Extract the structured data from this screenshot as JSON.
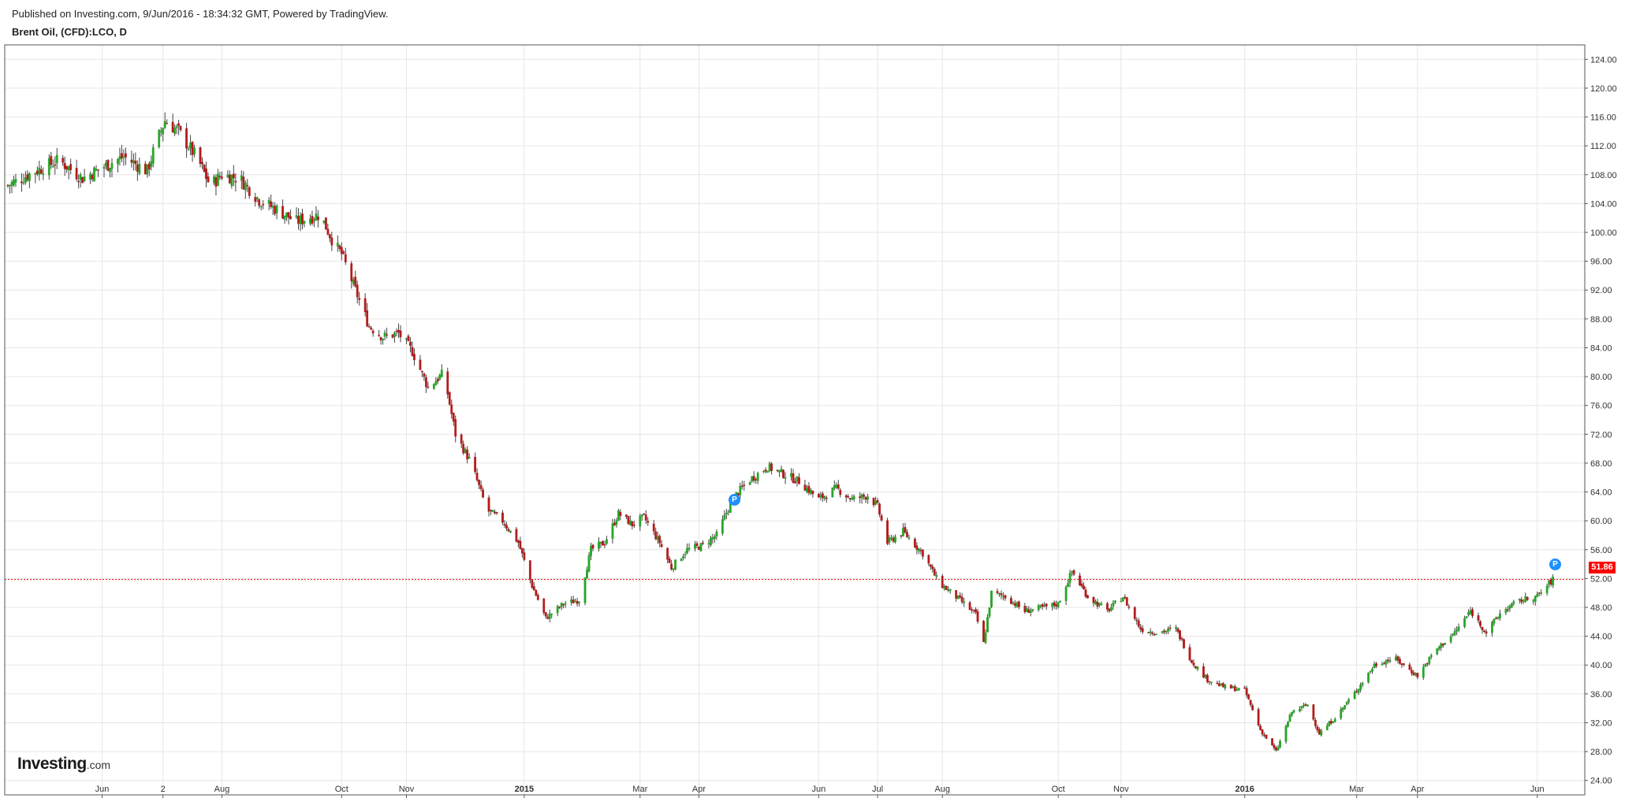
{
  "header": {
    "published": "Published on Investing.com, 9/Jun/2016 - 18:34:32 GMT, Powered by TradingView.",
    "symbol": "Brent Oil, (CFD):LCO, D"
  },
  "logo": {
    "brand": "Investing",
    "suffix": ".com"
  },
  "markers": [
    "P",
    "P"
  ],
  "last_price_label": "51.86",
  "colors": {
    "up": "#26a626",
    "down": "#b31b1b",
    "last_price_line": "#ff0000",
    "marker": "#1e90ff"
  },
  "chart_data": {
    "type": "candlestick",
    "title": "Brent Oil, (CFD):LCO, D",
    "xlabel": "",
    "ylabel": "",
    "ylim": [
      22,
      126
    ],
    "y_ticks": [
      "24.00",
      "28.00",
      "32.00",
      "36.00",
      "40.00",
      "44.00",
      "48.00",
      "52.00",
      "56.00",
      "60.00",
      "64.00",
      "68.00",
      "72.00",
      "76.00",
      "80.00",
      "84.00",
      "88.00",
      "92.00",
      "96.00",
      "100.00",
      "104.00",
      "108.00",
      "112.00",
      "116.00",
      "120.00",
      "124.00"
    ],
    "x_ticks": [
      {
        "label": "Jun",
        "date": "2014-06-01",
        "bold": false
      },
      {
        "label": "2",
        "date": "2014-07-02",
        "bold": false
      },
      {
        "label": "Aug",
        "date": "2014-08-01",
        "bold": false
      },
      {
        "label": "Oct",
        "date": "2014-10-01",
        "bold": false
      },
      {
        "label": "Nov",
        "date": "2014-11-03",
        "bold": false
      },
      {
        "label": "2015",
        "date": "2015-01-02",
        "bold": true
      },
      {
        "label": "Mar",
        "date": "2015-03-02",
        "bold": false
      },
      {
        "label": "Apr",
        "date": "2015-04-01",
        "bold": false
      },
      {
        "label": "Jun",
        "date": "2015-06-01",
        "bold": false
      },
      {
        "label": "Jul",
        "date": "2015-07-01",
        "bold": false
      },
      {
        "label": "Aug",
        "date": "2015-08-03",
        "bold": false
      },
      {
        "label": "Oct",
        "date": "2015-10-01",
        "bold": false
      },
      {
        "label": "Nov",
        "date": "2015-11-02",
        "bold": false
      },
      {
        "label": "2016",
        "date": "2016-01-04",
        "bold": true
      },
      {
        "label": "Mar",
        "date": "2016-03-01",
        "bold": false
      },
      {
        "label": "Apr",
        "date": "2016-04-01",
        "bold": false
      },
      {
        "label": "Jun",
        "date": "2016-06-01",
        "bold": false
      }
    ],
    "x_range": [
      "2014-04-14",
      "2016-06-22"
    ],
    "last_price": 51.86,
    "series": [
      {
        "name": "",
        "points": [
          {
            "date": "2014-04-14",
            "close": 106.5
          },
          {
            "date": "2014-04-28",
            "close": 108.5
          },
          {
            "date": "2014-05-10",
            "close": 110.0
          },
          {
            "date": "2014-05-22",
            "close": 107.5
          },
          {
            "date": "2014-06-01",
            "close": 109.0
          },
          {
            "date": "2014-06-12",
            "close": 110.5
          },
          {
            "date": "2014-06-24",
            "close": 108.5
          },
          {
            "date": "2014-06-28",
            "close": 112.0
          },
          {
            "date": "2014-07-03",
            "close": 115.5
          },
          {
            "date": "2014-07-10",
            "close": 114.0
          },
          {
            "date": "2014-07-20",
            "close": 110.0
          },
          {
            "date": "2014-07-26",
            "close": 106.5
          },
          {
            "date": "2014-08-01",
            "close": 108.0
          },
          {
            "date": "2014-08-10",
            "close": 107.5
          },
          {
            "date": "2014-08-20",
            "close": 104.5
          },
          {
            "date": "2014-08-30",
            "close": 103.0
          },
          {
            "date": "2014-09-08",
            "close": 101.5
          },
          {
            "date": "2014-09-20",
            "close": 102.5
          },
          {
            "date": "2014-09-27",
            "close": 98.5
          },
          {
            "date": "2014-10-01",
            "close": 97.0
          },
          {
            "date": "2014-10-08",
            "close": 92.0
          },
          {
            "date": "2014-10-15",
            "close": 87.0
          },
          {
            "date": "2014-10-22",
            "close": 85.5
          },
          {
            "date": "2014-10-30",
            "close": 86.0
          },
          {
            "date": "2014-11-06",
            "close": 83.5
          },
          {
            "date": "2014-11-14",
            "close": 78.5
          },
          {
            "date": "2014-11-22",
            "close": 80.5
          },
          {
            "date": "2014-11-28",
            "close": 72.0
          },
          {
            "date": "2014-12-06",
            "close": 68.0
          },
          {
            "date": "2014-12-14",
            "close": 61.5
          },
          {
            "date": "2014-12-22",
            "close": 60.0
          },
          {
            "date": "2014-12-30",
            "close": 57.0
          },
          {
            "date": "2015-01-06",
            "close": 51.0
          },
          {
            "date": "2015-01-13",
            "close": 46.5
          },
          {
            "date": "2015-01-22",
            "close": 48.5
          },
          {
            "date": "2015-01-30",
            "close": 49.0
          },
          {
            "date": "2015-02-05",
            "close": 56.0
          },
          {
            "date": "2015-02-12",
            "close": 57.0
          },
          {
            "date": "2015-02-19",
            "close": 61.0
          },
          {
            "date": "2015-02-26",
            "close": 59.5
          },
          {
            "date": "2015-03-04",
            "close": 60.5
          },
          {
            "date": "2015-03-12",
            "close": 57.0
          },
          {
            "date": "2015-03-18",
            "close": 53.5
          },
          {
            "date": "2015-03-26",
            "close": 56.0
          },
          {
            "date": "2015-04-02",
            "close": 56.5
          },
          {
            "date": "2015-04-10",
            "close": 58.0
          },
          {
            "date": "2015-04-18",
            "close": 63.0
          },
          {
            "date": "2015-04-26",
            "close": 65.5
          },
          {
            "date": "2015-05-06",
            "close": 67.5
          },
          {
            "date": "2015-05-14",
            "close": 66.5
          },
          {
            "date": "2015-05-22",
            "close": 65.5
          },
          {
            "date": "2015-06-01",
            "close": 63.0
          },
          {
            "date": "2015-06-10",
            "close": 64.5
          },
          {
            "date": "2015-06-18",
            "close": 63.0
          },
          {
            "date": "2015-06-26",
            "close": 63.5
          },
          {
            "date": "2015-07-01",
            "close": 62.0
          },
          {
            "date": "2015-07-06",
            "close": 57.0
          },
          {
            "date": "2015-07-14",
            "close": 58.5
          },
          {
            "date": "2015-07-24",
            "close": 55.5
          },
          {
            "date": "2015-08-01",
            "close": 51.5
          },
          {
            "date": "2015-08-12",
            "close": 49.0
          },
          {
            "date": "2015-08-20",
            "close": 47.0
          },
          {
            "date": "2015-08-24",
            "close": 43.0
          },
          {
            "date": "2015-08-28",
            "close": 50.0
          },
          {
            "date": "2015-09-04",
            "close": 49.5
          },
          {
            "date": "2015-09-14",
            "close": 47.5
          },
          {
            "date": "2015-09-24",
            "close": 48.0
          },
          {
            "date": "2015-10-01",
            "close": 48.5
          },
          {
            "date": "2015-10-08",
            "close": 53.0
          },
          {
            "date": "2015-10-16",
            "close": 49.5
          },
          {
            "date": "2015-10-26",
            "close": 47.5
          },
          {
            "date": "2015-11-03",
            "close": 49.5
          },
          {
            "date": "2015-11-12",
            "close": 45.0
          },
          {
            "date": "2015-11-20",
            "close": 44.5
          },
          {
            "date": "2015-11-30",
            "close": 45.0
          },
          {
            "date": "2015-12-08",
            "close": 40.5
          },
          {
            "date": "2015-12-16",
            "close": 38.0
          },
          {
            "date": "2015-12-24",
            "close": 37.0
          },
          {
            "date": "2016-01-04",
            "close": 36.5
          },
          {
            "date": "2016-01-12",
            "close": 31.0
          },
          {
            "date": "2016-01-20",
            "close": 28.0
          },
          {
            "date": "2016-01-28",
            "close": 33.5
          },
          {
            "date": "2016-02-05",
            "close": 34.5
          },
          {
            "date": "2016-02-11",
            "close": 30.5
          },
          {
            "date": "2016-02-20",
            "close": 33.0
          },
          {
            "date": "2016-03-01",
            "close": 36.5
          },
          {
            "date": "2016-03-10",
            "close": 40.0
          },
          {
            "date": "2016-03-20",
            "close": 41.0
          },
          {
            "date": "2016-04-01",
            "close": 38.5
          },
          {
            "date": "2016-04-10",
            "close": 42.0
          },
          {
            "date": "2016-04-20",
            "close": 44.5
          },
          {
            "date": "2016-04-28",
            "close": 47.5
          },
          {
            "date": "2016-05-06",
            "close": 44.5
          },
          {
            "date": "2016-05-14",
            "close": 47.5
          },
          {
            "date": "2016-05-24",
            "close": 49.0
          },
          {
            "date": "2016-06-01",
            "close": 49.5
          },
          {
            "date": "2016-06-09",
            "close": 51.86
          }
        ]
      }
    ]
  }
}
